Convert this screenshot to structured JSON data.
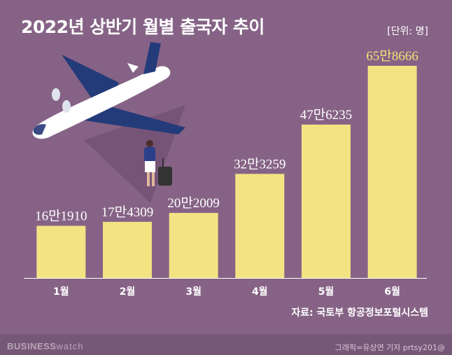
{
  "title": "2022년 상반기 월별 출국자 추이",
  "unit": "[단위: 명]",
  "source": "자료: 국토부 항공정보포털시스템",
  "footer": {
    "brand_bold": "BUSINESS",
    "brand_light": "watch",
    "credit": "그래픽=유상연 기자 prtsy201@"
  },
  "colors": {
    "background": "#866386",
    "bar": "#f3e383",
    "highlight_label": "#f2e17a",
    "baseline": "#ffffff"
  },
  "chart_data": {
    "type": "bar",
    "categories": [
      "1월",
      "2월",
      "3월",
      "4월",
      "5월",
      "6월"
    ],
    "values": [
      161910,
      174309,
      202009,
      323259,
      476235,
      658666
    ],
    "labels": [
      "16만1910",
      "17만4309",
      "20만2009",
      "32만3259",
      "47만6235",
      "65만8666"
    ],
    "highlight_index": 5,
    "title": "2022년 상반기 월별 출국자 추이",
    "xlabel": "",
    "ylabel": "",
    "unit": "명",
    "ylim": [
      0,
      700000
    ],
    "grid": false,
    "legend": "none"
  }
}
